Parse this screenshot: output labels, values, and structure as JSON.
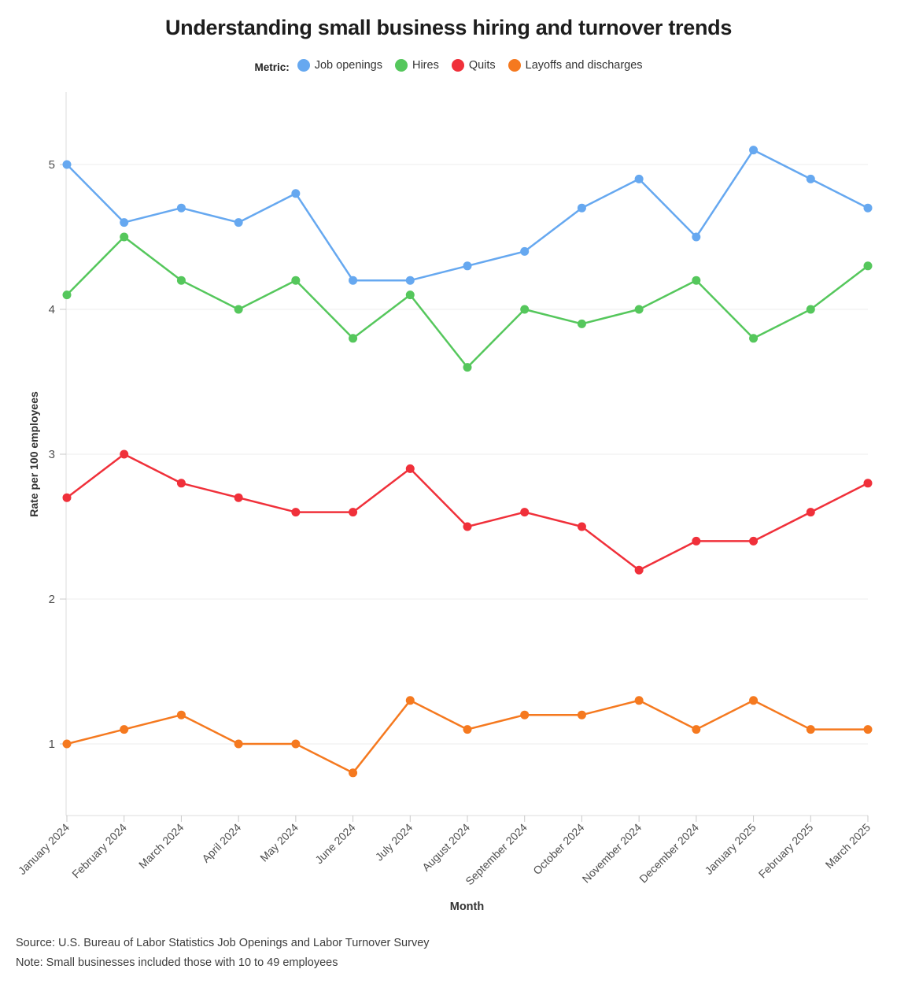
{
  "legend": {
    "label": "Metric:"
  },
  "chart_data": {
    "type": "line",
    "title": "Understanding small business hiring and turnover trends",
    "x": [
      "January 2024",
      "February 2024",
      "March 2024",
      "April 2024",
      "May 2024",
      "June 2024",
      "July 2024",
      "August 2024",
      "September 2024",
      "October 2024",
      "November 2024",
      "December 2024",
      "January 2025",
      "February 2025",
      "March 2025"
    ],
    "series": [
      {
        "name": "Job openings",
        "color": "#66A8F0",
        "values": [
          5.0,
          4.6,
          4.7,
          4.6,
          4.8,
          4.2,
          4.2,
          4.3,
          4.4,
          4.7,
          4.9,
          4.5,
          5.1,
          4.9,
          4.7
        ]
      },
      {
        "name": "Hires",
        "color": "#55C75C",
        "values": [
          4.1,
          4.5,
          4.2,
          4.0,
          4.2,
          3.8,
          4.1,
          3.6,
          4.0,
          3.9,
          4.0,
          4.2,
          3.8,
          4.0,
          4.3
        ]
      },
      {
        "name": "Quits",
        "color": "#F0303A",
        "values": [
          2.7,
          3.0,
          2.8,
          2.7,
          2.6,
          2.6,
          2.9,
          2.5,
          2.6,
          2.5,
          2.2,
          2.4,
          2.4,
          2.6,
          2.8
        ]
      },
      {
        "name": "Layoffs and discharges",
        "color": "#F5791F",
        "values": [
          1.0,
          1.1,
          1.2,
          1.0,
          1.0,
          0.8,
          1.3,
          1.1,
          1.2,
          1.2,
          1.3,
          1.1,
          1.3,
          1.1,
          1.1
        ]
      }
    ],
    "xlabel": "Month",
    "ylabel": "Rate per 100 employees",
    "ylim": [
      0.5,
      5.5
    ],
    "yticks": [
      1,
      2,
      3,
      4,
      5
    ],
    "grid": true,
    "legend_position": "top"
  },
  "footer": {
    "source": "Source: U.S. Bureau of Labor Statistics Job Openings and Labor Turnover Survey",
    "note": "Note: Small businesses included those with 10 to 49 employees"
  }
}
